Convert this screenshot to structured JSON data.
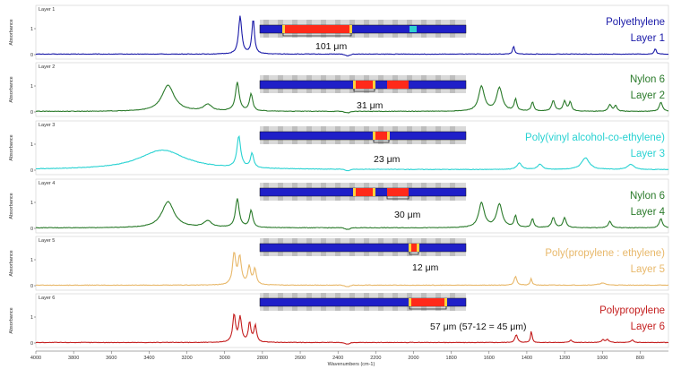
{
  "chart_data": {
    "type": "line",
    "title": "",
    "xlabel": "Wavenumbers (cm-1)",
    "ylabel": "Absorbance",
    "xlim": [
      4000,
      650
    ],
    "ylim": [
      0,
      1.6
    ],
    "x_ticks": [
      "4000",
      "3800",
      "3600",
      "3400",
      "3200",
      "3000",
      "2800",
      "2600",
      "2400",
      "2200",
      "2000",
      "1800",
      "1600",
      "1400",
      "1200",
      "1000",
      "800"
    ],
    "y_ticks": [
      "0",
      "1"
    ],
    "panels": [
      {
        "layer_label": "Layer 1",
        "polymer": "Polyethylene",
        "layer_name": "Layer 1",
        "color": "#1a1aa8",
        "thickness_label": "101 μm",
        "peaks": [
          {
            "x": 2918,
            "y": 1.45,
            "w": 10
          },
          {
            "x": 2849,
            "y": 1.35,
            "w": 8
          },
          {
            "x": 1470,
            "y": 0.3,
            "w": 6
          },
          {
            "x": 720,
            "y": 0.22,
            "w": 6
          }
        ],
        "bands": [
          {
            "x": 2800,
            "y": 0.0,
            "w": 1
          }
        ]
      },
      {
        "layer_label": "Layer 2",
        "polymer": "Nylon 6",
        "layer_name": "Layer 2",
        "color": "#2a7a2a",
        "thickness_label": "31 μm",
        "peaks": [
          {
            "x": 3300,
            "y": 1.0,
            "w": 40
          },
          {
            "x": 3090,
            "y": 0.25,
            "w": 25
          },
          {
            "x": 2933,
            "y": 1.1,
            "w": 12
          },
          {
            "x": 2860,
            "y": 0.65,
            "w": 10
          },
          {
            "x": 1640,
            "y": 0.95,
            "w": 18
          },
          {
            "x": 1545,
            "y": 0.9,
            "w": 18
          },
          {
            "x": 1460,
            "y": 0.45,
            "w": 8
          },
          {
            "x": 1370,
            "y": 0.35,
            "w": 8
          },
          {
            "x": 1260,
            "y": 0.4,
            "w": 10
          },
          {
            "x": 1200,
            "y": 0.38,
            "w": 10
          },
          {
            "x": 1170,
            "y": 0.35,
            "w": 8
          },
          {
            "x": 960,
            "y": 0.25,
            "w": 10
          },
          {
            "x": 930,
            "y": 0.22,
            "w": 8
          },
          {
            "x": 690,
            "y": 0.35,
            "w": 10
          }
        ]
      },
      {
        "layer_label": "Layer 3",
        "polymer": "Poly(vinyl alcohol-co-ethylene)",
        "layer_name": "Layer 3",
        "color": "#28d2d2",
        "thickness_label": "23 μm",
        "peaks": [
          {
            "x": 3330,
            "y": 0.75,
            "w": 150
          },
          {
            "x": 2925,
            "y": 1.2,
            "w": 12
          },
          {
            "x": 2855,
            "y": 0.55,
            "w": 10
          },
          {
            "x": 1440,
            "y": 0.25,
            "w": 15
          },
          {
            "x": 1330,
            "y": 0.2,
            "w": 15
          },
          {
            "x": 1090,
            "y": 0.45,
            "w": 25
          },
          {
            "x": 850,
            "y": 0.2,
            "w": 20
          }
        ]
      },
      {
        "layer_label": "Layer 4",
        "polymer": "Nylon 6",
        "layer_name": "Layer 4",
        "color": "#2a7a2a",
        "thickness_label": "30 μm",
        "peaks": [
          {
            "x": 3300,
            "y": 1.0,
            "w": 40
          },
          {
            "x": 3090,
            "y": 0.25,
            "w": 25
          },
          {
            "x": 2933,
            "y": 1.1,
            "w": 12
          },
          {
            "x": 2860,
            "y": 0.65,
            "w": 10
          },
          {
            "x": 1640,
            "y": 0.95,
            "w": 18
          },
          {
            "x": 1545,
            "y": 0.9,
            "w": 18
          },
          {
            "x": 1460,
            "y": 0.45,
            "w": 8
          },
          {
            "x": 1370,
            "y": 0.35,
            "w": 8
          },
          {
            "x": 1260,
            "y": 0.4,
            "w": 10
          },
          {
            "x": 1200,
            "y": 0.38,
            "w": 10
          },
          {
            "x": 960,
            "y": 0.25,
            "w": 10
          },
          {
            "x": 690,
            "y": 0.35,
            "w": 10
          }
        ]
      },
      {
        "layer_label": "Layer 5",
        "polymer": "Poly(propylene : ethylene)",
        "layer_name": "Layer 5",
        "color": "#e8b86a",
        "thickness_label": "12 μm",
        "peaks": [
          {
            "x": 2950,
            "y": 1.2,
            "w": 10
          },
          {
            "x": 2920,
            "y": 1.05,
            "w": 10
          },
          {
            "x": 2870,
            "y": 0.7,
            "w": 9
          },
          {
            "x": 2840,
            "y": 0.6,
            "w": 9
          },
          {
            "x": 1460,
            "y": 0.35,
            "w": 8
          },
          {
            "x": 1377,
            "y": 0.25,
            "w": 6
          },
          {
            "x": 1000,
            "y": 0.08,
            "w": 20
          }
        ]
      },
      {
        "layer_label": "Layer 6",
        "polymer": "Polypropylene",
        "layer_name": "Layer 6",
        "color": "#c41e1e",
        "thickness_label": "57 μm (57-12 = 45 μm)",
        "peaks": [
          {
            "x": 2950,
            "y": 1.05,
            "w": 9
          },
          {
            "x": 2918,
            "y": 0.95,
            "w": 9
          },
          {
            "x": 2868,
            "y": 0.75,
            "w": 8
          },
          {
            "x": 2838,
            "y": 0.65,
            "w": 8
          },
          {
            "x": 1456,
            "y": 0.3,
            "w": 8
          },
          {
            "x": 1376,
            "y": 0.45,
            "w": 5
          },
          {
            "x": 1167,
            "y": 0.1,
            "w": 8
          },
          {
            "x": 997,
            "y": 0.1,
            "w": 8
          },
          {
            "x": 973,
            "y": 0.12,
            "w": 8
          },
          {
            "x": 841,
            "y": 0.1,
            "w": 8
          }
        ]
      }
    ]
  }
}
